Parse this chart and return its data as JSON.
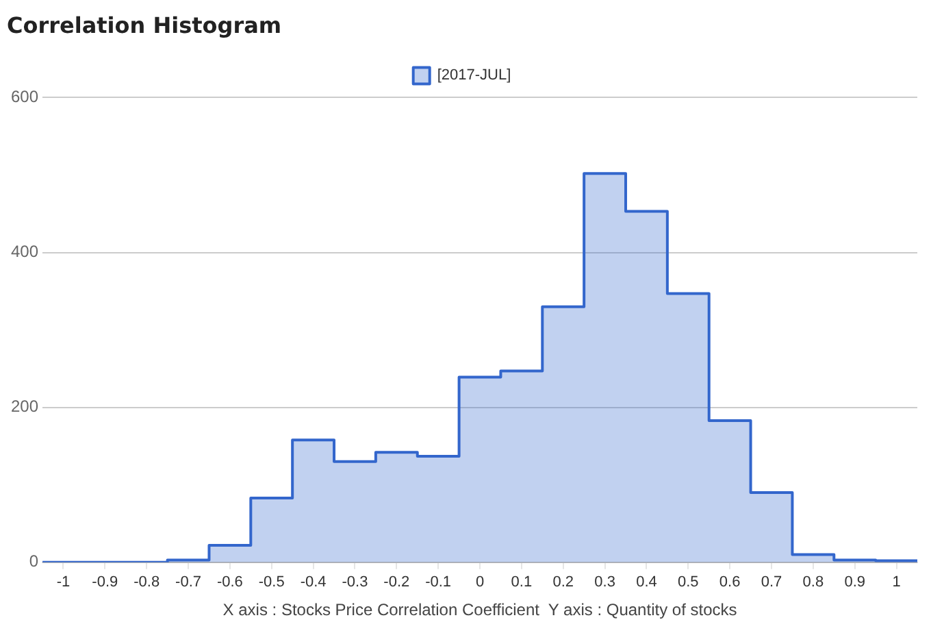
{
  "chart_data": {
    "type": "histogram",
    "title": "Correlation Histogram",
    "xlabel": "X axis : Stocks Price Correlation Coefficient  Y axis : Quantity of stocks",
    "bins": [
      -1.05,
      -0.95,
      -0.85,
      -0.75,
      -0.65,
      -0.55,
      -0.45,
      -0.35,
      -0.25,
      -0.15,
      -0.05,
      0.05,
      0.15,
      0.25,
      0.35,
      0.45,
      0.55,
      0.65,
      0.75,
      0.85,
      0.95,
      1.05
    ],
    "series": [
      {
        "name": "[2017-JUL]",
        "color": "#3366cc",
        "values": [
          0,
          0,
          0,
          3,
          22,
          83,
          158,
          130,
          142,
          137,
          239,
          247,
          330,
          502,
          453,
          347,
          183,
          90,
          10,
          3,
          2
        ]
      }
    ],
    "xlim": [
      -1.05,
      1.05
    ],
    "xticks": [
      -1,
      -0.9,
      -0.8,
      -0.7,
      -0.6,
      -0.5,
      -0.4,
      -0.3,
      -0.2,
      -0.1,
      0,
      0.1,
      0.2,
      0.3,
      0.4,
      0.5,
      0.6,
      0.7,
      0.8,
      0.9,
      1
    ],
    "ylim": [
      0,
      600
    ],
    "yticks": [
      0,
      200,
      400,
      600
    ],
    "grid": "y",
    "legend": "top"
  }
}
